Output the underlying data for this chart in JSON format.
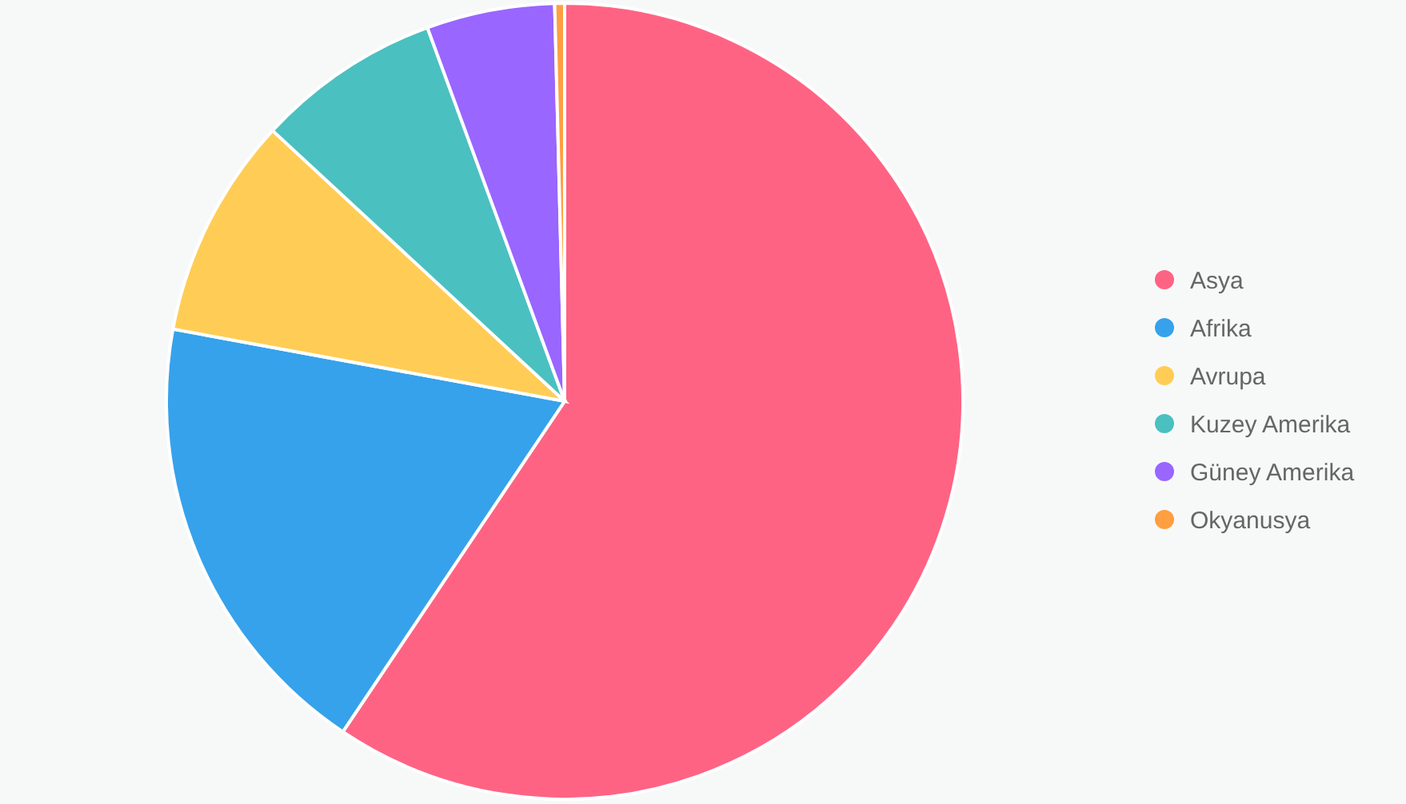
{
  "chart_data": {
    "type": "pie",
    "categories": [
      "Asya",
      "Afrika",
      "Avrupa",
      "Kuzey Amerika",
      "Güney Amerika",
      "Okyanusya"
    ],
    "values": [
      59.4,
      18.5,
      9.0,
      7.5,
      5.2,
      0.4
    ],
    "colors": [
      "#ff6384",
      "#36a2eb",
      "#ffcd56",
      "#4bc0c0",
      "#9966ff",
      "#ff9f40"
    ],
    "legend": "right"
  }
}
